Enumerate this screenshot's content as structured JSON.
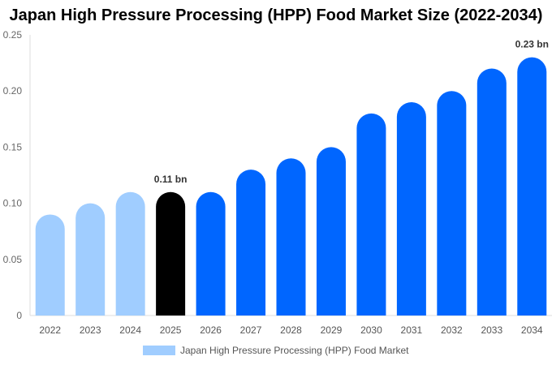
{
  "chart_data": {
    "type": "bar",
    "title": "Japan High Pressure Processing (HPP) Food Market Size (2022-2034)",
    "categories": [
      "2022",
      "2023",
      "2024",
      "2025",
      "2026",
      "2027",
      "2028",
      "2029",
      "2030",
      "2031",
      "2032",
      "2033",
      "2034"
    ],
    "series": [
      {
        "name": "Japan High Pressure Processing (HPP) Food Market",
        "values": [
          0.09,
          0.1,
          0.11,
          0.11,
          0.11,
          0.13,
          0.14,
          0.15,
          0.18,
          0.19,
          0.2,
          0.22,
          0.23
        ]
      }
    ],
    "ylim": [
      0,
      0.25
    ],
    "yticks": [
      "0",
      "0.05",
      "0.10",
      "0.15",
      "0.20",
      "0.25"
    ],
    "grid": false,
    "legend_position": "bottom",
    "annotations": [
      {
        "category": "2025",
        "text": "0.11 bn"
      },
      {
        "category": "2034",
        "text": "0.23 bn"
      }
    ],
    "colors": {
      "historical": "#a0cdff",
      "current": "#000000",
      "forecast": "#0066ff"
    }
  }
}
